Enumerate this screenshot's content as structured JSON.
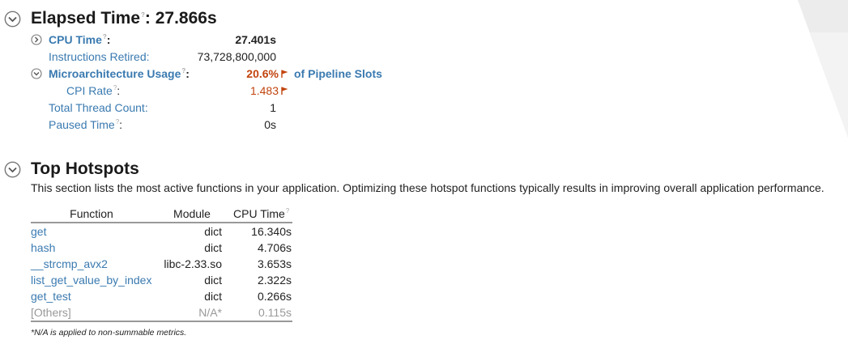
{
  "elapsed": {
    "title": "Elapsed Time",
    "colon_value": ": 27.866s",
    "rows": [
      {
        "label": "CPU Time",
        "help": true,
        "suffix": ":",
        "value": "27.401s"
      },
      {
        "label": "Instructions Retired",
        "suffix": ":",
        "value": "73,728,800,000"
      },
      {
        "label": "Microarchitecture Usage",
        "help": true,
        "suffix": ":",
        "value": "20.6%",
        "extra": "of Pipeline Slots"
      },
      {
        "label": "CPI Rate",
        "help": true,
        "suffix": ":",
        "value": "1.483"
      },
      {
        "label": "Total Thread Count",
        "suffix": ":",
        "value": "1"
      },
      {
        "label": "Paused Time",
        "help": true,
        "suffix": ":",
        "value": "0s"
      }
    ]
  },
  "hotspots": {
    "title": "Top Hotspots",
    "description": "This section lists the most active functions in your application. Optimizing these hotspot functions typically results in improving overall application performance.",
    "columns": [
      "Function",
      "Module",
      "CPU Time"
    ],
    "rows": [
      {
        "function": "get",
        "module": "dict",
        "cpu": "16.340s"
      },
      {
        "function": "hash",
        "module": "dict",
        "cpu": "4.706s"
      },
      {
        "function": "__strcmp_avx2",
        "module": "libc-2.33.so",
        "cpu": "3.653s"
      },
      {
        "function": "list_get_value_by_index",
        "module": "dict",
        "cpu": "2.322s"
      },
      {
        "function": "get_test",
        "module": "dict",
        "cpu": "0.266s"
      },
      {
        "function": "[Others]",
        "module": "N/A*",
        "cpu": "0.115s"
      }
    ],
    "footnote": "*N/A is applied to non-summable metrics."
  },
  "help_glyph": "?",
  "colors": {
    "link": "#3a7ab0",
    "warning": "#c2440e",
    "muted": "#999999"
  }
}
